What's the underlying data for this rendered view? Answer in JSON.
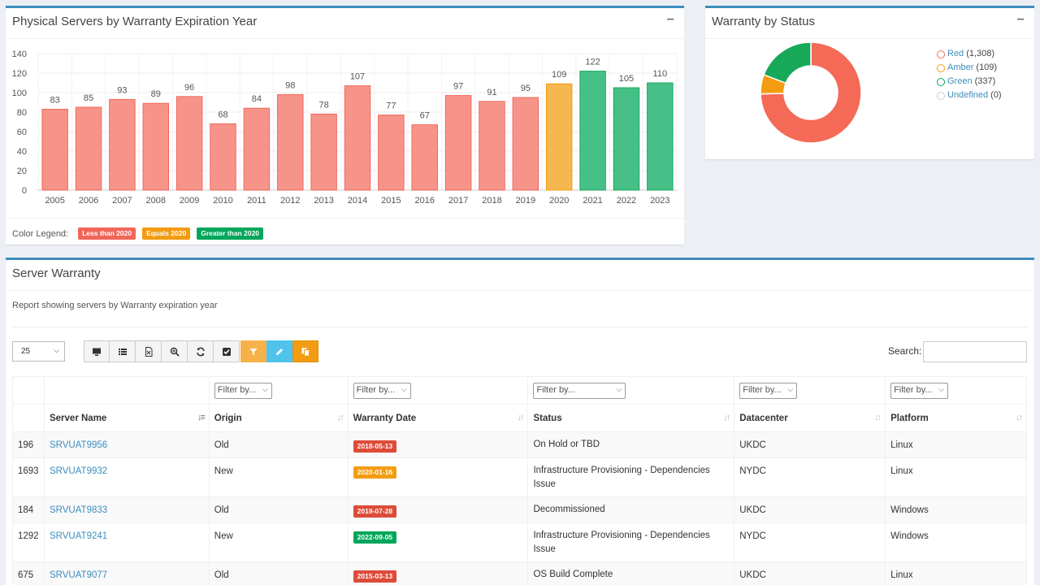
{
  "bar_panel": {
    "title": "Physical Servers by Warranty Expiration Year",
    "legend_label": "Color Legend:",
    "legend": [
      {
        "label": "Less than 2020",
        "color": "#f2665a"
      },
      {
        "label": "Equals 2020",
        "color": "#f39c12"
      },
      {
        "label": "Greater than 2020",
        "color": "#00a65a"
      }
    ]
  },
  "chart_data": [
    {
      "type": "bar",
      "title": "Physical Servers by Warranty Expiration Year",
      "categories": [
        "2005",
        "2006",
        "2007",
        "2008",
        "2009",
        "2010",
        "2011",
        "2012",
        "2013",
        "2014",
        "2015",
        "2016",
        "2017",
        "2018",
        "2019",
        "2020",
        "2021",
        "2022",
        "2023"
      ],
      "values": [
        83,
        85,
        93,
        89,
        96,
        68,
        84,
        98,
        78,
        107,
        77,
        67,
        97,
        91,
        95,
        109,
        122,
        105,
        110
      ],
      "bar_colors": [
        "#f7948a",
        "#f7948a",
        "#f7948a",
        "#f7948a",
        "#f7948a",
        "#f7948a",
        "#f7948a",
        "#f7948a",
        "#f7948a",
        "#f7948a",
        "#f7948a",
        "#f7948a",
        "#f7948a",
        "#f7948a",
        "#f7948a",
        "#f5b74f",
        "#46c087",
        "#46c087",
        "#46c087"
      ],
      "yticks": [
        0,
        20,
        40,
        60,
        80,
        100,
        120,
        140
      ],
      "ylim": [
        0,
        140
      ],
      "grid": true,
      "data_labels": true
    },
    {
      "type": "pie",
      "title": "Warranty by Status",
      "categories": [
        "Red",
        "Amber",
        "Green",
        "Undefined"
      ],
      "values": [
        1308,
        109,
        337,
        0
      ],
      "colors": [
        "#f46a56",
        "#f39c12",
        "#17a85a",
        "#dddddd"
      ],
      "donut": true
    }
  ],
  "donut_panel": {
    "title": "Warranty by Status",
    "legend": [
      {
        "name": "Red",
        "count": "(1,308)",
        "color": "#f46a56"
      },
      {
        "name": "Amber",
        "count": "(109)",
        "color": "#f39c12"
      },
      {
        "name": "Green",
        "count": "(337)",
        "color": "#00a65a"
      },
      {
        "name": "Undefined",
        "count": "(0)",
        "color": "#d0d0d0"
      }
    ]
  },
  "table_panel": {
    "title": "Server Warranty",
    "description": "Report showing servers by Warranty expiration year",
    "page_length": "25",
    "search_label": "Search:",
    "filter_placeholder": "Filter by...",
    "toolbar_icons": [
      "monitor-icon",
      "list-icon",
      "excel-icon",
      "zoom-icon",
      "refresh-icon",
      "checkbox-icon",
      "filter-icon",
      "pencil-icon",
      "copy-icon"
    ],
    "columns": [
      "",
      "Server Name",
      "Origin",
      "Warranty Date",
      "Status",
      "Datacenter",
      "Platform"
    ],
    "rows": [
      {
        "id": "196",
        "server": "SRVUAT9956",
        "origin": "Old",
        "date": "2018-05-13",
        "date_color": "#dd4b39",
        "status": "On Hold or TBD",
        "dc": "UKDC",
        "platform": "Linux"
      },
      {
        "id": "1693",
        "server": "SRVUAT9932",
        "origin": "New",
        "date": "2020-01-16",
        "date_color": "#f39c12",
        "status": "Infrastructure Provisioning - Dependencies Issue",
        "dc": "NYDC",
        "platform": "Linux"
      },
      {
        "id": "184",
        "server": "SRVUAT9833",
        "origin": "Old",
        "date": "2019-07-28",
        "date_color": "#dd4b39",
        "status": "Decommissioned",
        "dc": "UKDC",
        "platform": "Windows"
      },
      {
        "id": "1292",
        "server": "SRVUAT9241",
        "origin": "New",
        "date": "2022-09-05",
        "date_color": "#00a65a",
        "status": "Infrastructure Provisioning - Dependencies Issue",
        "dc": "NYDC",
        "platform": "Windows"
      },
      {
        "id": "675",
        "server": "SRVUAT9077",
        "origin": "Old",
        "date": "2015-03-13",
        "date_color": "#dd4b39",
        "status": "OS Build Complete",
        "dc": "UKDC",
        "platform": "Linux"
      }
    ]
  }
}
